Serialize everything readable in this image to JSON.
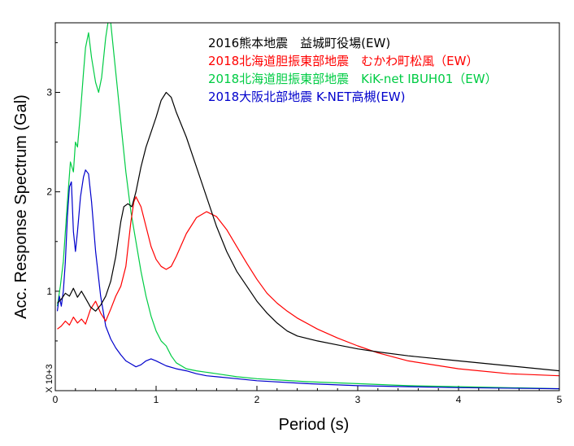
{
  "chart_data": {
    "type": "line",
    "xlabel": "Period (s)",
    "ylabel": "Acc. Response Spectrum (Gal)",
    "y_multiplier_label": "X 10+3",
    "xlim": [
      0,
      5
    ],
    "ylim": [
      0,
      3.7
    ],
    "x_ticks": [
      "0",
      "1",
      "2",
      "3",
      "4",
      "5"
    ],
    "y_ticks": [
      "1",
      "2",
      "3"
    ],
    "grid": false,
    "legend_position": "top-center",
    "series": [
      {
        "name": "2016熊本地震　益城町役場(EW)",
        "color": "#000000",
        "points": [
          [
            0.02,
            0.88
          ],
          [
            0.06,
            0.92
          ],
          [
            0.1,
            0.98
          ],
          [
            0.14,
            0.95
          ],
          [
            0.18,
            1.03
          ],
          [
            0.22,
            0.94
          ],
          [
            0.26,
            1.0
          ],
          [
            0.3,
            0.93
          ],
          [
            0.35,
            0.84
          ],
          [
            0.4,
            0.8
          ],
          [
            0.45,
            0.86
          ],
          [
            0.5,
            0.95
          ],
          [
            0.55,
            1.1
          ],
          [
            0.6,
            1.35
          ],
          [
            0.65,
            1.7
          ],
          [
            0.68,
            1.85
          ],
          [
            0.72,
            1.88
          ],
          [
            0.76,
            1.85
          ],
          [
            0.8,
            2.0
          ],
          [
            0.85,
            2.25
          ],
          [
            0.9,
            2.45
          ],
          [
            0.95,
            2.6
          ],
          [
            1.0,
            2.75
          ],
          [
            1.05,
            2.92
          ],
          [
            1.1,
            3.0
          ],
          [
            1.15,
            2.95
          ],
          [
            1.2,
            2.8
          ],
          [
            1.3,
            2.55
          ],
          [
            1.4,
            2.25
          ],
          [
            1.5,
            1.95
          ],
          [
            1.6,
            1.65
          ],
          [
            1.7,
            1.4
          ],
          [
            1.8,
            1.2
          ],
          [
            1.9,
            1.05
          ],
          [
            2.0,
            0.9
          ],
          [
            2.1,
            0.78
          ],
          [
            2.2,
            0.68
          ],
          [
            2.3,
            0.6
          ],
          [
            2.4,
            0.55
          ],
          [
            2.6,
            0.5
          ],
          [
            2.8,
            0.46
          ],
          [
            3.0,
            0.42
          ],
          [
            3.2,
            0.39
          ],
          [
            3.5,
            0.35
          ],
          [
            4.0,
            0.3
          ],
          [
            4.5,
            0.25
          ],
          [
            5.0,
            0.2
          ]
        ]
      },
      {
        "name": "2018北海道胆振東部地震　むかわ町松風（EW）",
        "color": "#ff0000",
        "points": [
          [
            0.02,
            0.62
          ],
          [
            0.06,
            0.65
          ],
          [
            0.1,
            0.7
          ],
          [
            0.14,
            0.66
          ],
          [
            0.18,
            0.74
          ],
          [
            0.22,
            0.68
          ],
          [
            0.26,
            0.72
          ],
          [
            0.3,
            0.67
          ],
          [
            0.35,
            0.82
          ],
          [
            0.4,
            0.9
          ],
          [
            0.45,
            0.78
          ],
          [
            0.5,
            0.7
          ],
          [
            0.55,
            0.82
          ],
          [
            0.6,
            0.95
          ],
          [
            0.65,
            1.05
          ],
          [
            0.7,
            1.25
          ],
          [
            0.75,
            1.7
          ],
          [
            0.78,
            1.9
          ],
          [
            0.8,
            1.95
          ],
          [
            0.85,
            1.85
          ],
          [
            0.9,
            1.65
          ],
          [
            0.95,
            1.45
          ],
          [
            1.0,
            1.32
          ],
          [
            1.05,
            1.25
          ],
          [
            1.1,
            1.22
          ],
          [
            1.15,
            1.25
          ],
          [
            1.2,
            1.35
          ],
          [
            1.3,
            1.58
          ],
          [
            1.4,
            1.74
          ],
          [
            1.5,
            1.8
          ],
          [
            1.6,
            1.75
          ],
          [
            1.7,
            1.62
          ],
          [
            1.8,
            1.45
          ],
          [
            1.9,
            1.28
          ],
          [
            2.0,
            1.12
          ],
          [
            2.1,
            0.98
          ],
          [
            2.2,
            0.88
          ],
          [
            2.3,
            0.8
          ],
          [
            2.4,
            0.73
          ],
          [
            2.6,
            0.62
          ],
          [
            2.8,
            0.53
          ],
          [
            3.0,
            0.45
          ],
          [
            3.2,
            0.38
          ],
          [
            3.5,
            0.3
          ],
          [
            4.0,
            0.22
          ],
          [
            4.5,
            0.17
          ],
          [
            5.0,
            0.15
          ]
        ]
      },
      {
        "name": "2018北海道胆振東部地震　KiK-net IBUH01（EW）",
        "color": "#00cc44",
        "points": [
          [
            0.02,
            0.85
          ],
          [
            0.05,
            1.05
          ],
          [
            0.08,
            1.3
          ],
          [
            0.12,
            1.9
          ],
          [
            0.15,
            2.3
          ],
          [
            0.18,
            2.2
          ],
          [
            0.2,
            2.5
          ],
          [
            0.22,
            2.45
          ],
          [
            0.25,
            2.8
          ],
          [
            0.28,
            3.2
          ],
          [
            0.3,
            3.45
          ],
          [
            0.33,
            3.6
          ],
          [
            0.36,
            3.35
          ],
          [
            0.4,
            3.1
          ],
          [
            0.43,
            3.0
          ],
          [
            0.46,
            3.15
          ],
          [
            0.5,
            3.55
          ],
          [
            0.53,
            3.75
          ],
          [
            0.55,
            3.7
          ],
          [
            0.58,
            3.4
          ],
          [
            0.62,
            3.0
          ],
          [
            0.66,
            2.6
          ],
          [
            0.7,
            2.2
          ],
          [
            0.75,
            1.8
          ],
          [
            0.8,
            1.5
          ],
          [
            0.85,
            1.2
          ],
          [
            0.9,
            0.95
          ],
          [
            0.95,
            0.75
          ],
          [
            1.0,
            0.6
          ],
          [
            1.05,
            0.5
          ],
          [
            1.1,
            0.45
          ],
          [
            1.15,
            0.35
          ],
          [
            1.2,
            0.28
          ],
          [
            1.3,
            0.22
          ],
          [
            1.4,
            0.2
          ],
          [
            1.6,
            0.17
          ],
          [
            1.8,
            0.14
          ],
          [
            2.0,
            0.12
          ],
          [
            2.5,
            0.09
          ],
          [
            3.0,
            0.07
          ],
          [
            3.5,
            0.05
          ],
          [
            4.0,
            0.04
          ],
          [
            5.0,
            0.02
          ]
        ]
      },
      {
        "name": "2018大阪北部地震 K-NET高槻(EW)",
        "color": "#0000cc",
        "points": [
          [
            0.02,
            0.8
          ],
          [
            0.04,
            0.95
          ],
          [
            0.06,
            0.85
          ],
          [
            0.08,
            1.0
          ],
          [
            0.1,
            1.3
          ],
          [
            0.12,
            1.75
          ],
          [
            0.14,
            2.05
          ],
          [
            0.16,
            2.1
          ],
          [
            0.18,
            1.6
          ],
          [
            0.2,
            1.4
          ],
          [
            0.22,
            1.6
          ],
          [
            0.25,
            1.95
          ],
          [
            0.28,
            2.15
          ],
          [
            0.3,
            2.22
          ],
          [
            0.33,
            2.18
          ],
          [
            0.36,
            1.9
          ],
          [
            0.4,
            1.4
          ],
          [
            0.45,
            0.95
          ],
          [
            0.5,
            0.65
          ],
          [
            0.55,
            0.52
          ],
          [
            0.6,
            0.43
          ],
          [
            0.65,
            0.36
          ],
          [
            0.7,
            0.3
          ],
          [
            0.75,
            0.27
          ],
          [
            0.8,
            0.24
          ],
          [
            0.85,
            0.26
          ],
          [
            0.9,
            0.3
          ],
          [
            0.95,
            0.32
          ],
          [
            1.0,
            0.3
          ],
          [
            1.1,
            0.25
          ],
          [
            1.2,
            0.22
          ],
          [
            1.3,
            0.2
          ],
          [
            1.4,
            0.17
          ],
          [
            1.5,
            0.15
          ],
          [
            1.6,
            0.14
          ],
          [
            1.8,
            0.12
          ],
          [
            2.0,
            0.1
          ],
          [
            2.5,
            0.07
          ],
          [
            3.0,
            0.05
          ],
          [
            3.5,
            0.04
          ],
          [
            4.0,
            0.03
          ],
          [
            5.0,
            0.02
          ]
        ]
      }
    ]
  }
}
